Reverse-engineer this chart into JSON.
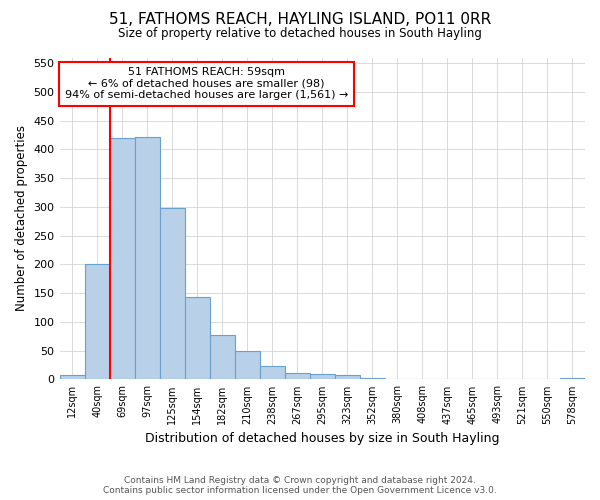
{
  "title": "51, FATHOMS REACH, HAYLING ISLAND, PO11 0RR",
  "subtitle": "Size of property relative to detached houses in South Hayling",
  "xlabel": "Distribution of detached houses by size in South Hayling",
  "ylabel": "Number of detached properties",
  "categories": [
    "12sqm",
    "40sqm",
    "69sqm",
    "97sqm",
    "125sqm",
    "154sqm",
    "182sqm",
    "210sqm",
    "238sqm",
    "267sqm",
    "295sqm",
    "323sqm",
    "352sqm",
    "380sqm",
    "408sqm",
    "437sqm",
    "465sqm",
    "493sqm",
    "521sqm",
    "550sqm",
    "578sqm"
  ],
  "values": [
    8,
    200,
    420,
    422,
    298,
    143,
    77,
    49,
    24,
    12,
    9,
    7,
    2,
    1,
    1,
    0,
    0,
    0,
    0,
    0,
    3
  ],
  "bar_color": "#b8d0e8",
  "bar_edge_color": "#6aa0cc",
  "annotation_line1": "51 FATHOMS REACH: 59sqm",
  "annotation_line2": "← 6% of detached houses are smaller (98)",
  "annotation_line3": "94% of semi-detached houses are larger (1,561) →",
  "vline_x_index": 2.0,
  "ylim": [
    0,
    560
  ],
  "yticks": [
    0,
    50,
    100,
    150,
    200,
    250,
    300,
    350,
    400,
    450,
    500,
    550
  ],
  "footer_line1": "Contains HM Land Registry data © Crown copyright and database right 2024.",
  "footer_line2": "Contains public sector information licensed under the Open Government Licence v3.0.",
  "background_color": "#ffffff",
  "grid_color": "#cccccc"
}
